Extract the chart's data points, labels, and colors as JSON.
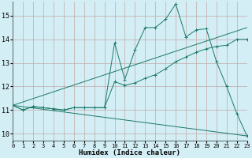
{
  "xlabel": "Humidex (Indice chaleur)",
  "background_color": "#d4eef5",
  "line_color": "#1a7a6a",
  "xlim": [
    0,
    23
  ],
  "ylim": [
    9.7,
    15.6
  ],
  "yticks": [
    10,
    11,
    12,
    13,
    14,
    15
  ],
  "xticks": [
    0,
    1,
    2,
    3,
    4,
    5,
    6,
    7,
    8,
    9,
    10,
    11,
    12,
    13,
    14,
    15,
    16,
    17,
    18,
    19,
    20,
    21,
    22,
    23
  ],
  "line1_x": [
    0,
    1,
    2,
    3,
    4,
    5,
    6,
    7,
    8,
    9,
    10,
    11,
    12,
    13,
    14,
    15,
    16,
    17,
    18,
    19,
    20,
    21,
    22,
    23
  ],
  "line1_y": [
    11.2,
    11.0,
    11.15,
    11.1,
    11.05,
    11.0,
    11.1,
    11.1,
    11.1,
    11.1,
    13.85,
    12.3,
    13.55,
    14.5,
    14.5,
    14.85,
    15.5,
    14.1,
    14.4,
    14.45,
    13.05,
    12.0,
    10.85,
    9.9
  ],
  "line2_x": [
    0,
    1,
    2,
    3,
    4,
    5,
    6,
    7,
    8,
    9,
    10,
    11,
    12,
    13,
    14,
    15,
    16,
    17,
    18,
    19,
    20,
    21,
    22,
    23
  ],
  "line2_y": [
    11.2,
    11.0,
    11.15,
    11.1,
    11.05,
    11.0,
    11.1,
    11.1,
    11.1,
    11.1,
    12.2,
    12.05,
    12.15,
    12.35,
    12.5,
    12.75,
    13.05,
    13.25,
    13.45,
    13.6,
    13.7,
    13.75,
    14.0,
    14.0
  ],
  "line3_x": [
    0,
    23
  ],
  "line3_y": [
    11.2,
    14.5
  ],
  "line4_x": [
    0,
    23
  ],
  "line4_y": [
    11.2,
    9.9
  ]
}
